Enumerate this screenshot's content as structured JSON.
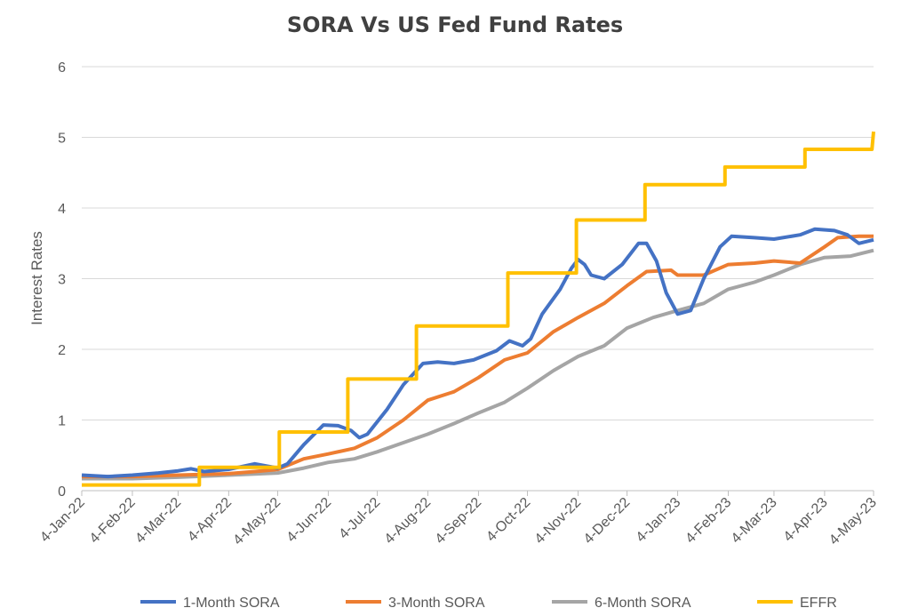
{
  "chart_data": {
    "type": "line",
    "title": "SORA Vs US Fed Fund Rates",
    "xlabel": "",
    "ylabel": "Interest Rates",
    "ylim": [
      0,
      6
    ],
    "yticks": [
      0,
      1,
      2,
      3,
      4,
      5,
      6
    ],
    "xlim": [
      "2022-01-04",
      "2023-05-04"
    ],
    "xticks": [
      {
        "date": "2022-01-04",
        "label": "4-Jan-22"
      },
      {
        "date": "2022-02-04",
        "label": "4-Feb-22"
      },
      {
        "date": "2022-03-04",
        "label": "4-Mar-22"
      },
      {
        "date": "2022-04-04",
        "label": "4-Apr-22"
      },
      {
        "date": "2022-05-04",
        "label": "4-May-22"
      },
      {
        "date": "2022-06-04",
        "label": "4-Jun-22"
      },
      {
        "date": "2022-07-04",
        "label": "4-Jul-22"
      },
      {
        "date": "2022-08-04",
        "label": "4-Aug-22"
      },
      {
        "date": "2022-09-04",
        "label": "4-Sep-22"
      },
      {
        "date": "2022-10-04",
        "label": "4-Oct-22"
      },
      {
        "date": "2022-11-04",
        "label": "4-Nov-22"
      },
      {
        "date": "2022-12-04",
        "label": "4-Dec-22"
      },
      {
        "date": "2023-01-04",
        "label": "4-Jan-23"
      },
      {
        "date": "2023-02-04",
        "label": "4-Feb-23"
      },
      {
        "date": "2023-03-04",
        "label": "4-Mar-23"
      },
      {
        "date": "2023-04-04",
        "label": "4-Apr-23"
      },
      {
        "date": "2023-05-04",
        "label": "4-May-23"
      }
    ],
    "grid": true,
    "legend_position": "bottom",
    "series": [
      {
        "name": "1-Month SORA",
        "color": "#4472C4",
        "points": [
          [
            "2022-01-04",
            0.22
          ],
          [
            "2022-01-20",
            0.2
          ],
          [
            "2022-02-04",
            0.22
          ],
          [
            "2022-02-20",
            0.25
          ],
          [
            "2022-03-04",
            0.28
          ],
          [
            "2022-03-12",
            0.31
          ],
          [
            "2022-03-20",
            0.27
          ],
          [
            "2022-04-04",
            0.3
          ],
          [
            "2022-04-20",
            0.38
          ],
          [
            "2022-05-04",
            0.32
          ],
          [
            "2022-05-10",
            0.38
          ],
          [
            "2022-05-20",
            0.65
          ],
          [
            "2022-06-01",
            0.93
          ],
          [
            "2022-06-10",
            0.92
          ],
          [
            "2022-06-18",
            0.85
          ],
          [
            "2022-06-23",
            0.75
          ],
          [
            "2022-06-28",
            0.8
          ],
          [
            "2022-07-10",
            1.15
          ],
          [
            "2022-07-20",
            1.5
          ],
          [
            "2022-08-01",
            1.8
          ],
          [
            "2022-08-10",
            1.82
          ],
          [
            "2022-08-20",
            1.8
          ],
          [
            "2022-09-01",
            1.85
          ],
          [
            "2022-09-15",
            1.98
          ],
          [
            "2022-09-23",
            2.12
          ],
          [
            "2022-10-01",
            2.05
          ],
          [
            "2022-10-06",
            2.15
          ],
          [
            "2022-10-13",
            2.5
          ],
          [
            "2022-10-24",
            2.85
          ],
          [
            "2022-10-31",
            3.15
          ],
          [
            "2022-11-04",
            3.27
          ],
          [
            "2022-11-08",
            3.2
          ],
          [
            "2022-11-12",
            3.05
          ],
          [
            "2022-11-20",
            3.0
          ],
          [
            "2022-12-01",
            3.2
          ],
          [
            "2022-12-11",
            3.5
          ],
          [
            "2022-12-16",
            3.5
          ],
          [
            "2022-12-22",
            3.25
          ],
          [
            "2022-12-28",
            2.8
          ],
          [
            "2023-01-04",
            2.5
          ],
          [
            "2023-01-12",
            2.55
          ],
          [
            "2023-01-20",
            3.0
          ],
          [
            "2023-01-30",
            3.45
          ],
          [
            "2023-02-06",
            3.6
          ],
          [
            "2023-02-20",
            3.58
          ],
          [
            "2023-03-04",
            3.56
          ],
          [
            "2023-03-20",
            3.62
          ],
          [
            "2023-03-29",
            3.7
          ],
          [
            "2023-04-10",
            3.68
          ],
          [
            "2023-04-18",
            3.62
          ],
          [
            "2023-04-25",
            3.5
          ],
          [
            "2023-05-04",
            3.55
          ]
        ]
      },
      {
        "name": "3-Month SORA",
        "color": "#ED7D31",
        "points": [
          [
            "2022-01-04",
            0.2
          ],
          [
            "2022-02-04",
            0.2
          ],
          [
            "2022-03-04",
            0.22
          ],
          [
            "2022-04-04",
            0.24
          ],
          [
            "2022-04-20",
            0.27
          ],
          [
            "2022-05-04",
            0.3
          ],
          [
            "2022-05-20",
            0.45
          ],
          [
            "2022-06-04",
            0.52
          ],
          [
            "2022-06-20",
            0.6
          ],
          [
            "2022-07-04",
            0.75
          ],
          [
            "2022-07-20",
            1.0
          ],
          [
            "2022-08-04",
            1.28
          ],
          [
            "2022-08-20",
            1.4
          ],
          [
            "2022-09-04",
            1.6
          ],
          [
            "2022-09-20",
            1.85
          ],
          [
            "2022-10-04",
            1.95
          ],
          [
            "2022-10-20",
            2.25
          ],
          [
            "2022-11-04",
            2.45
          ],
          [
            "2022-11-20",
            2.65
          ],
          [
            "2022-12-04",
            2.9
          ],
          [
            "2022-12-16",
            3.1
          ],
          [
            "2022-12-31",
            3.12
          ],
          [
            "2023-01-04",
            3.05
          ],
          [
            "2023-01-20",
            3.05
          ],
          [
            "2023-02-04",
            3.2
          ],
          [
            "2023-02-20",
            3.22
          ],
          [
            "2023-03-04",
            3.25
          ],
          [
            "2023-03-20",
            3.22
          ],
          [
            "2023-04-04",
            3.45
          ],
          [
            "2023-04-12",
            3.58
          ],
          [
            "2023-04-25",
            3.6
          ],
          [
            "2023-05-04",
            3.6
          ]
        ]
      },
      {
        "name": "6-Month SORA",
        "color": "#A5A5A5",
        "points": [
          [
            "2022-01-04",
            0.17
          ],
          [
            "2022-02-04",
            0.17
          ],
          [
            "2022-03-04",
            0.19
          ],
          [
            "2022-04-04",
            0.22
          ],
          [
            "2022-05-04",
            0.25
          ],
          [
            "2022-05-20",
            0.32
          ],
          [
            "2022-06-04",
            0.4
          ],
          [
            "2022-06-20",
            0.45
          ],
          [
            "2022-07-04",
            0.55
          ],
          [
            "2022-08-04",
            0.8
          ],
          [
            "2022-08-20",
            0.95
          ],
          [
            "2022-09-04",
            1.1
          ],
          [
            "2022-09-20",
            1.25
          ],
          [
            "2022-10-04",
            1.45
          ],
          [
            "2022-10-20",
            1.7
          ],
          [
            "2022-11-04",
            1.9
          ],
          [
            "2022-11-20",
            2.05
          ],
          [
            "2022-12-04",
            2.3
          ],
          [
            "2022-12-20",
            2.45
          ],
          [
            "2023-01-04",
            2.55
          ],
          [
            "2023-01-20",
            2.65
          ],
          [
            "2023-02-04",
            2.85
          ],
          [
            "2023-02-20",
            2.95
          ],
          [
            "2023-03-04",
            3.05
          ],
          [
            "2023-03-20",
            3.2
          ],
          [
            "2023-04-04",
            3.3
          ],
          [
            "2023-04-20",
            3.32
          ],
          [
            "2023-05-04",
            3.4
          ]
        ]
      },
      {
        "name": "EFFR",
        "color": "#FFC000",
        "points": [
          [
            "2022-01-04",
            0.08
          ],
          [
            "2022-03-17",
            0.08
          ],
          [
            "2022-03-17",
            0.33
          ],
          [
            "2022-05-05",
            0.33
          ],
          [
            "2022-05-05",
            0.83
          ],
          [
            "2022-06-16",
            0.83
          ],
          [
            "2022-06-16",
            1.58
          ],
          [
            "2022-07-28",
            1.58
          ],
          [
            "2022-07-28",
            2.33
          ],
          [
            "2022-09-22",
            2.33
          ],
          [
            "2022-09-22",
            3.08
          ],
          [
            "2022-11-03",
            3.08
          ],
          [
            "2022-11-03",
            3.83
          ],
          [
            "2022-12-15",
            3.83
          ],
          [
            "2022-12-15",
            4.33
          ],
          [
            "2023-02-02",
            4.33
          ],
          [
            "2023-02-02",
            4.58
          ],
          [
            "2023-03-23",
            4.58
          ],
          [
            "2023-03-23",
            4.83
          ],
          [
            "2023-05-03",
            4.83
          ],
          [
            "2023-05-04",
            5.08
          ]
        ]
      }
    ]
  }
}
